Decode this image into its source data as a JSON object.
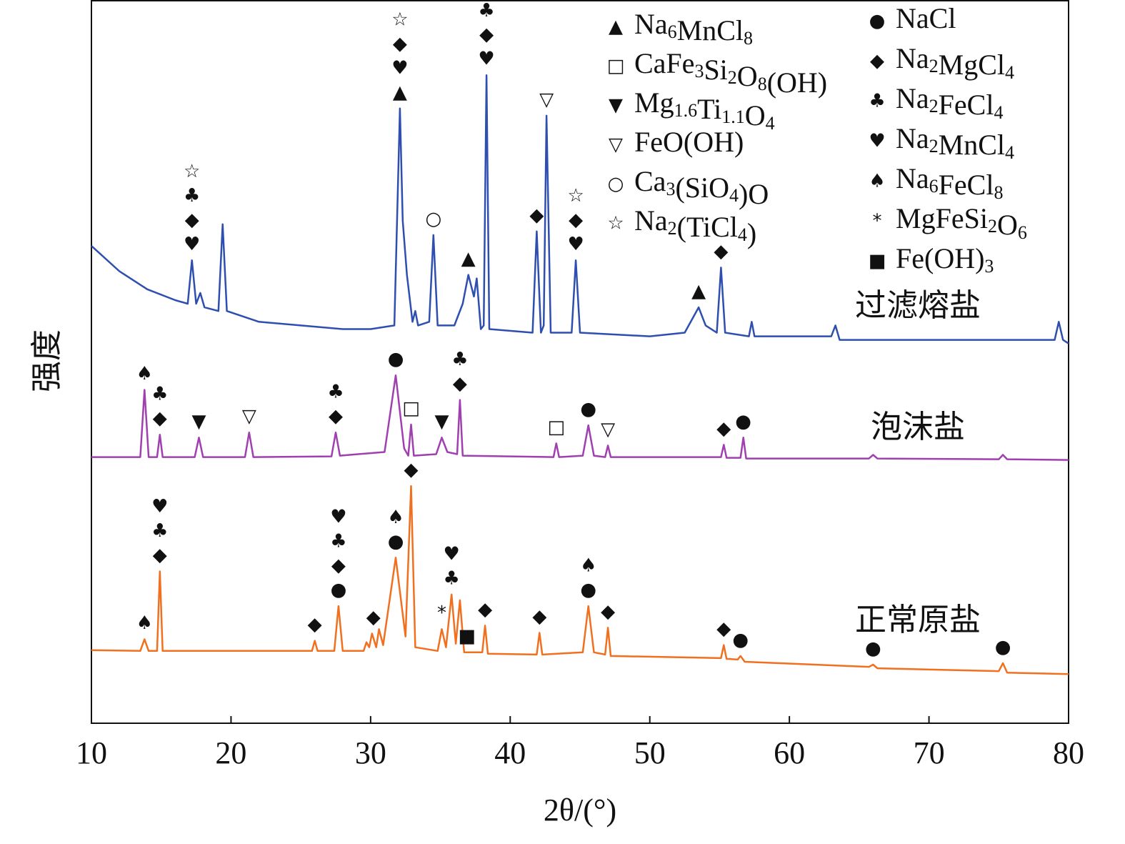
{
  "chart_data": {
    "type": "line",
    "xlabel": "2θ/(°)",
    "ylabel": "强度",
    "xlim": [
      10,
      80
    ],
    "xticks": [
      10,
      20,
      30,
      40,
      50,
      60,
      70,
      80
    ],
    "ylim": [
      0,
      100
    ],
    "legend": [
      {
        "symbol": "▲",
        "label": "Na6MnCl8"
      },
      {
        "symbol": "□",
        "label": "CaFe3Si2O8(OH)"
      },
      {
        "symbol": "▼",
        "label": "Mg1.6Ti1.1O4"
      },
      {
        "symbol": "▽",
        "label": "FeO(OH)"
      },
      {
        "symbol": "○",
        "label": "Ca3(SiO4)O"
      },
      {
        "symbol": "☆",
        "label": "Na2(TiCl4)"
      },
      {
        "symbol": "●",
        "label": "NaCl"
      },
      {
        "symbol": "◆",
        "label": "Na2MgCl4"
      },
      {
        "symbol": "♣",
        "label": "Na2FeCl4"
      },
      {
        "symbol": "♥",
        "label": "Na2MnCl4"
      },
      {
        "symbol": "♠",
        "label": "Na6FeCl8"
      },
      {
        "symbol": "*",
        "label": "MgFeSi2O6"
      },
      {
        "symbol": "■",
        "label": "Fe(OH)3"
      }
    ],
    "series": [
      {
        "name": "过滤熔盐",
        "color": "#2e4fb0",
        "x": [
          10,
          12,
          14,
          16,
          16.9,
          17.2,
          17.5,
          17.8,
          18.1,
          19.1,
          19.4,
          19.7,
          22,
          25,
          28,
          30,
          31.7,
          32.1,
          32.3,
          32.6,
          33,
          33.2,
          33.4,
          34.2,
          34.5,
          34.8,
          36,
          36.6,
          37,
          37.4,
          37.6,
          37.9,
          38.1,
          38.3,
          38.5,
          41.6,
          41.9,
          42.2,
          42.4,
          42.6,
          42.9,
          44.4,
          44.7,
          45,
          50,
          52.5,
          53.5,
          54,
          54.8,
          55.1,
          55.4,
          57.1,
          57.3,
          57.5,
          63,
          63.3,
          63.6,
          79,
          79.3,
          79.6,
          80
        ],
        "values": [
          66,
          62.5,
          60,
          58.5,
          58,
          64,
          58,
          59.5,
          57.5,
          57,
          69,
          57,
          55.5,
          55,
          54.5,
          54.5,
          55,
          85,
          69.5,
          62,
          55.5,
          57,
          55,
          55.5,
          67.5,
          55,
          55,
          58,
          62,
          59,
          61.5,
          54.5,
          55,
          89.6,
          54.5,
          54,
          68,
          54,
          55,
          84,
          54,
          54,
          64,
          54,
          53.5,
          54,
          57.5,
          55,
          54,
          63,
          54,
          53.5,
          55.5,
          53.5,
          53.5,
          55,
          53,
          53,
          55.5,
          53,
          52.5
        ],
        "annotations": [
          {
            "x": 17.2,
            "labels": [
              "☆",
              "♣",
              "◆",
              "♥"
            ]
          },
          {
            "x": 32.1,
            "labels": [
              "☆",
              "◆",
              "♥",
              "▲"
            ]
          },
          {
            "x": 34.5,
            "labels": [
              "○"
            ]
          },
          {
            "x": 37,
            "labels": [
              "▲"
            ]
          },
          {
            "x": 38.3,
            "labels": [
              "♣",
              "◆",
              "♥"
            ]
          },
          {
            "x": 41.9,
            "labels": [
              "◆"
            ]
          },
          {
            "x": 42.6,
            "labels": [
              "▽"
            ]
          },
          {
            "x": 44.7,
            "labels": [
              "☆",
              "◆",
              "♥"
            ]
          },
          {
            "x": 53.5,
            "labels": [
              "▲"
            ]
          },
          {
            "x": 55.1,
            "labels": [
              "◆"
            ]
          }
        ]
      },
      {
        "name": "泡沫盐",
        "color": "#a040b0",
        "x": [
          10,
          13.5,
          13.8,
          14.1,
          14.7,
          14.9,
          15.1,
          17.4,
          17.7,
          18,
          21,
          21.3,
          21.6,
          27.2,
          27.5,
          27.8,
          31,
          31.8,
          32.4,
          32.7,
          32.9,
          33.1,
          34.7,
          35.1,
          35.5,
          36.2,
          36.4,
          36.6,
          43.1,
          43.3,
          43.5,
          45.2,
          45.6,
          46,
          46.8,
          47,
          47.2,
          55.1,
          55.3,
          55.5,
          56.5,
          56.7,
          56.9,
          65.7,
          66,
          66.3,
          75,
          75.3,
          75.6,
          80
        ],
        "values": [
          36.8,
          36.8,
          46.1,
          36.8,
          36.8,
          39.9,
          36.8,
          36.8,
          39.5,
          36.8,
          36.8,
          40.2,
          36.8,
          36.9,
          40.2,
          37,
          37.5,
          48.1,
          38,
          37,
          41.3,
          37,
          37.2,
          39.5,
          37.5,
          37.2,
          44.7,
          37,
          36.8,
          38.7,
          36.8,
          37,
          41.2,
          37,
          36.8,
          38.4,
          36.8,
          36.8,
          38.5,
          36.7,
          36.7,
          39.5,
          36.6,
          36.6,
          37.1,
          36.6,
          36.5,
          37.1,
          36.5,
          36.4
        ],
        "annotations": [
          {
            "x": 13.8,
            "labels": [
              "♠"
            ]
          },
          {
            "x": 14.9,
            "labels": [
              "♣",
              "◆"
            ]
          },
          {
            "x": 17.7,
            "labels": [
              "▼"
            ]
          },
          {
            "x": 21.3,
            "labels": [
              "▽"
            ]
          },
          {
            "x": 27.5,
            "labels": [
              "♣",
              "◆"
            ]
          },
          {
            "x": 31.8,
            "labels": [
              "●"
            ]
          },
          {
            "x": 32.9,
            "labels": [
              "□"
            ]
          },
          {
            "x": 35.1,
            "labels": [
              "▼"
            ]
          },
          {
            "x": 36.4,
            "labels": [
              "♣",
              "◆"
            ]
          },
          {
            "x": 43.3,
            "labels": [
              "□"
            ]
          },
          {
            "x": 45.6,
            "labels": [
              "●"
            ]
          },
          {
            "x": 47,
            "labels": [
              "▽"
            ]
          },
          {
            "x": 55.3,
            "labels": [
              "◆"
            ]
          },
          {
            "x": 56.7,
            "labels": [
              "●"
            ]
          }
        ]
      },
      {
        "name": "正常原盐",
        "color": "#f07020",
        "x": [
          10,
          13.5,
          13.8,
          14.1,
          14.7,
          14.9,
          15.1,
          25.8,
          26,
          26.2,
          27.4,
          27.7,
          28,
          29.5,
          29.7,
          29.9,
          30.1,
          30.4,
          30.6,
          30.9,
          31.8,
          32.5,
          32.9,
          33.2,
          34.8,
          35.1,
          35.4,
          35.8,
          36.1,
          36.4,
          36.7,
          38,
          38.2,
          38.4,
          41.9,
          42.1,
          42.3,
          45.2,
          45.6,
          46,
          46.8,
          47,
          47.2,
          55.1,
          55.3,
          55.5,
          56.3,
          56.5,
          56.8,
          65.7,
          66,
          66.3,
          75,
          75.3,
          75.6,
          80
        ],
        "values": [
          10.1,
          10,
          11.6,
          10,
          10,
          21,
          10,
          10,
          11.4,
          10,
          10,
          16.2,
          10,
          10,
          11.2,
          10.5,
          12.4,
          10.5,
          13,
          10.8,
          22.9,
          12,
          32.8,
          10.5,
          10,
          13,
          10.5,
          17.8,
          11,
          17,
          9.8,
          9.8,
          13.5,
          9.6,
          9.5,
          12.5,
          9.5,
          9.8,
          16.2,
          9.8,
          9.5,
          13.2,
          9.3,
          9,
          10.8,
          8.9,
          8.8,
          9.3,
          8.5,
          7.8,
          8.1,
          7.6,
          7.2,
          8.3,
          7,
          6.8
        ],
        "annotations": [
          {
            "x": 13.8,
            "labels": [
              "♠"
            ]
          },
          {
            "x": 14.9,
            "labels": [
              "♥",
              "♣",
              "◆"
            ]
          },
          {
            "x": 26,
            "labels": [
              "◆"
            ]
          },
          {
            "x": 27.7,
            "labels": [
              "♥",
              "♣",
              "◆",
              "●"
            ]
          },
          {
            "x": 30.2,
            "labels": [
              "◆"
            ]
          },
          {
            "x": 31.8,
            "labels": [
              "♠",
              "●"
            ]
          },
          {
            "x": 32.9,
            "labels": [
              "◆"
            ]
          },
          {
            "x": 35.1,
            "labels": [
              "*"
            ]
          },
          {
            "x": 35.8,
            "labels": [
              "♥",
              "♣"
            ]
          },
          {
            "x": 36.9,
            "labels": [
              "■"
            ]
          },
          {
            "x": 38.2,
            "labels": [
              "◆"
            ]
          },
          {
            "x": 42.1,
            "labels": [
              "◆"
            ]
          },
          {
            "x": 45.6,
            "labels": [
              "♠",
              "●"
            ]
          },
          {
            "x": 47,
            "labels": [
              "◆"
            ]
          },
          {
            "x": 55.3,
            "labels": [
              "◆"
            ]
          },
          {
            "x": 56.5,
            "labels": [
              "●"
            ]
          },
          {
            "x": 66,
            "labels": [
              "●"
            ]
          },
          {
            "x": 75.3,
            "labels": [
              "●"
            ]
          }
        ]
      }
    ]
  }
}
